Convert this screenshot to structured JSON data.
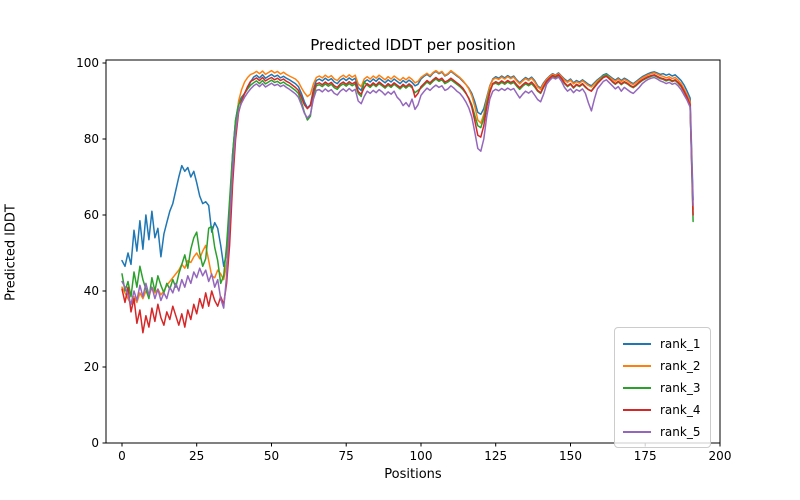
{
  "chart_data": {
    "type": "line",
    "title": "Predicted lDDT per position",
    "xlabel": "Positions",
    "ylabel": "Predicted lDDT",
    "xlim": [
      -5.35,
      200
    ],
    "ylim": [
      0,
      100.8
    ],
    "xticks": [
      0,
      25,
      50,
      75,
      100,
      125,
      150,
      175,
      200
    ],
    "yticks": [
      0,
      20,
      40,
      60,
      80,
      100
    ],
    "grid": false,
    "legend_position": "lower right",
    "x_start": 0,
    "x_step": 1,
    "series": [
      {
        "name": "rank_1",
        "color": "#1f77b4",
        "values": [
          48,
          46.5,
          50,
          47,
          56,
          50.5,
          58.5,
          51,
          60,
          53.5,
          61,
          54,
          56.5,
          49,
          55,
          58,
          61,
          63,
          66.5,
          70,
          73,
          71.5,
          72.5,
          70,
          71.5,
          68.5,
          65,
          63,
          63.5,
          62.5,
          55.5,
          58,
          56.5,
          52,
          46.5,
          50,
          62,
          76,
          85,
          89.5,
          91,
          92,
          93.5,
          95,
          96.3,
          96.8,
          96.1,
          96.9,
          96,
          96.5,
          97,
          96.4,
          96.8,
          96.1,
          96.5,
          96,
          95.6,
          95.1,
          94.6,
          93.8,
          92,
          89.8,
          88.2,
          89,
          93,
          95.4,
          95.8,
          95.3,
          96,
          95.4,
          95.9,
          95,
          94.6,
          95.5,
          96,
          95.4,
          96.1,
          95.5,
          96,
          93.5,
          92.8,
          95,
          95.6,
          95,
          95.8,
          95.2,
          96,
          95.4,
          94.8,
          95.6,
          95,
          95.8,
          95.2,
          94.6,
          95.4,
          94.8,
          95.5,
          94.9,
          94,
          94.4,
          95.8,
          96.5,
          97,
          96.4,
          97.3,
          97.8,
          97.2,
          97.6,
          96.6,
          97,
          97.8,
          97.2,
          96.6,
          96,
          95.2,
          94.4,
          93.4,
          92,
          89.8,
          87,
          86.5,
          88,
          91,
          94,
          95.8,
          96.4,
          96,
          96.6,
          96.1,
          96.7,
          96.2,
          96.6,
          95.6,
          94.8,
          95.6,
          96.2,
          95.7,
          96.3,
          95.4,
          94,
          93.4,
          94.8,
          95.8,
          96.6,
          97.2,
          96.8,
          97.4,
          96.6,
          95.8,
          95.2,
          95.8,
          94.8,
          95.4,
          95,
          95.6,
          95,
          94.4,
          94,
          94.8,
          95.6,
          96.2,
          96.9,
          97.2,
          96.6,
          96,
          95.5,
          96.1,
          95.4,
          96,
          95.6,
          95,
          94.6,
          95.2,
          95.8,
          96.4,
          96.8,
          97.2,
          97.5,
          97.7,
          97.4,
          97,
          97.2,
          96.8,
          97.1,
          96.6,
          96.9,
          96.2,
          95.4,
          94.2,
          92.6,
          90.8,
          64
        ]
      },
      {
        "name": "rank_2",
        "color": "#ff7f0e",
        "values": [
          41,
          39.5,
          38,
          36.5,
          38.5,
          37,
          39.5,
          38,
          40,
          38.5,
          41,
          39.5,
          40.5,
          39,
          40,
          41.5,
          42.5,
          43.5,
          44.5,
          45.5,
          47,
          46,
          48,
          47.5,
          49,
          50,
          48.5,
          50.5,
          52,
          48,
          44,
          43.5,
          45.5,
          44.5,
          43,
          47,
          56,
          70,
          82,
          90,
          93,
          95,
          96.2,
          97,
          97.3,
          97.8,
          97.2,
          97.9,
          97,
          97.5,
          98,
          97.4,
          97.8,
          97.1,
          97.6,
          97,
          96.6,
          96.2,
          95.8,
          95,
          93.5,
          92.2,
          91.2,
          91.8,
          94.5,
          96.2,
          96.6,
          96.1,
          96.8,
          96.2,
          96.7,
          95.8,
          95.4,
          96.3,
          96.8,
          96.2,
          96.9,
          96.3,
          96.8,
          94.5,
          93.8,
          95.8,
          96.4,
          95.8,
          96.6,
          96,
          96.8,
          96.2,
          95.6,
          96.4,
          95.8,
          96.6,
          96,
          95.4,
          96.2,
          95.6,
          96.3,
          95.7,
          94.8,
          95.2,
          96.2,
          96.8,
          97.3,
          96.7,
          97.5,
          98,
          97.4,
          97.8,
          96.8,
          97.2,
          98,
          97.4,
          96.8,
          96.2,
          95.4,
          94.4,
          93.2,
          91.4,
          88.6,
          85,
          84.2,
          86.5,
          90.5,
          93.8,
          95.6,
          96.1,
          95.7,
          96.3,
          95.8,
          96.4,
          95.9,
          96.3,
          95.3,
          94.5,
          95.3,
          95.9,
          95.4,
          96,
          95.1,
          93.7,
          93.1,
          94.5,
          95.6,
          96.4,
          97,
          96.7,
          97.2,
          96.4,
          95.5,
          94.9,
          95.5,
          94.5,
          95.1,
          94.7,
          95.3,
          94.7,
          94.1,
          93.7,
          94.5,
          95.3,
          95.9,
          96.6,
          96.9,
          96.3,
          95.7,
          95.2,
          95.8,
          95.1,
          95.7,
          95.3,
          94.7,
          94.3,
          94.9,
          95.5,
          96.1,
          96.5,
          96.9,
          97.2,
          97.4,
          97.1,
          96.7,
          96.5,
          96.1,
          96.4,
          95.9,
          96.2,
          95.5,
          94.6,
          93.2,
          91.6,
          89.8,
          61.5
        ]
      },
      {
        "name": "rank_3",
        "color": "#2ca02c",
        "values": [
          44.5,
          40,
          42.5,
          38.5,
          45,
          41,
          46.5,
          43,
          40.5,
          38,
          43.5,
          40,
          44,
          41.5,
          39.5,
          42,
          40.5,
          43,
          41,
          44.5,
          47,
          49.5,
          46,
          51,
          54,
          55.5,
          50,
          46.5,
          48.5,
          56.5,
          57,
          51.5,
          48,
          42,
          44,
          52,
          64,
          76,
          85,
          89,
          90.5,
          92,
          93.2,
          94.2,
          94.8,
          95.3,
          94.6,
          95.4,
          94.5,
          95,
          95.5,
          94.9,
          95.2,
          94.6,
          95,
          94.4,
          94,
          93.4,
          92.8,
          92,
          89.8,
          87,
          85,
          86,
          91.5,
          94,
          94.3,
          93.8,
          94.5,
          93.9,
          94.4,
          93.5,
          93.1,
          94,
          94.5,
          93.9,
          94.6,
          94,
          94.5,
          92,
          91.2,
          95,
          94.2,
          93.6,
          94.4,
          93.8,
          94.6,
          94,
          93.4,
          94.2,
          93.6,
          94.4,
          93.8,
          93.2,
          94,
          93.4,
          94.1,
          93.5,
          92.2,
          92.8,
          93.4,
          94.2,
          95,
          94.4,
          95.2,
          95.8,
          95.2,
          95.6,
          94.6,
          95,
          95.6,
          95,
          94.4,
          93.8,
          93,
          92,
          90.8,
          89,
          86.2,
          83.5,
          83,
          85.5,
          89.5,
          92.8,
          94.4,
          94.7,
          94.3,
          94.9,
          94.4,
          95,
          94.5,
          94.9,
          93.9,
          93.1,
          93.9,
          94.5,
          94,
          94.6,
          93.7,
          92.6,
          92,
          93.6,
          95,
          95.8,
          96.5,
          96.2,
          96.7,
          95.8,
          94.6,
          93.8,
          94.4,
          93.4,
          94.2,
          93.8,
          94.4,
          93.6,
          93,
          92.7,
          93.8,
          94.8,
          95.6,
          96.5,
          96.8,
          96,
          95,
          94.4,
          95,
          94.3,
          94.9,
          94.5,
          93.9,
          93.5,
          94.1,
          94.8,
          95.4,
          95.8,
          96.2,
          96.5,
          96.7,
          96.3,
          95.9,
          95.7,
          95.3,
          95.6,
          95.1,
          95.4,
          94.7,
          93.8,
          92.4,
          90.8,
          88.8,
          58.3
        ]
      },
      {
        "name": "rank_4",
        "color": "#d62728",
        "values": [
          40.5,
          37,
          41,
          34.5,
          38,
          31.5,
          35,
          29,
          33.5,
          30.5,
          35.5,
          32,
          36.5,
          33,
          31,
          34.5,
          32.5,
          36,
          33.5,
          31,
          34,
          30.5,
          35,
          32.5,
          36.5,
          34,
          38,
          35.5,
          39.5,
          36,
          40,
          37.5,
          36,
          38.5,
          36.5,
          42,
          52,
          68,
          80,
          87,
          90,
          92,
          93.8,
          95.2,
          95.6,
          96.1,
          95.4,
          96.2,
          95.3,
          95.8,
          96.2,
          95.6,
          96,
          95.4,
          95.8,
          95.2,
          94.8,
          94.2,
          93.6,
          92.8,
          91,
          89,
          88,
          88.8,
          92.5,
          94.5,
          94.8,
          94.3,
          95,
          94.4,
          94.9,
          94,
          93.6,
          94.5,
          95,
          94.4,
          95.1,
          94.5,
          95,
          92.5,
          91.8,
          93.5,
          94.6,
          94,
          94.8,
          94.2,
          95,
          94.4,
          93.8,
          94.6,
          94,
          94.8,
          94.2,
          93.6,
          94.4,
          93.8,
          94.5,
          93.9,
          91,
          92,
          93.8,
          94.6,
          95.4,
          94.8,
          95.6,
          96.2,
          95.6,
          96,
          95,
          95.4,
          96,
          95.4,
          94.8,
          94.2,
          93.4,
          92.2,
          90.6,
          88.4,
          84.8,
          81,
          80.5,
          83.5,
          88.5,
          92.2,
          94.6,
          95.1,
          94.7,
          95.3,
          94.8,
          95.4,
          94.9,
          95.3,
          94.3,
          93.5,
          94.3,
          94.9,
          94.4,
          95,
          94.1,
          92.8,
          92.2,
          93.8,
          95.2,
          96,
          96.7,
          96.4,
          96.9,
          96,
          94.8,
          94,
          94.6,
          93.6,
          94.4,
          94,
          94.6,
          93.8,
          93,
          92.6,
          93.6,
          94.6,
          95.4,
          96.2,
          96.5,
          95.8,
          95.2,
          94.6,
          95.2,
          94.5,
          95.1,
          94.7,
          94.1,
          93.7,
          94.3,
          95,
          95.6,
          96,
          96.4,
          96.7,
          96.9,
          96.5,
          96.1,
          95.9,
          95.5,
          95.8,
          95.3,
          95.6,
          94.9,
          94,
          92.6,
          91,
          89,
          60
        ]
      },
      {
        "name": "rank_5",
        "color": "#9467bd",
        "values": [
          42.5,
          41,
          39,
          36.5,
          40,
          37.5,
          41.5,
          38.5,
          42,
          39,
          41,
          38,
          40.5,
          37.5,
          39.5,
          38,
          41,
          39.5,
          42,
          40,
          43,
          41,
          44,
          42,
          45,
          43.5,
          46,
          44,
          45.5,
          42.5,
          44.5,
          41,
          43,
          38,
          35.5,
          44,
          58,
          72,
          82,
          87.5,
          89.5,
          91,
          92.2,
          93.2,
          94,
          94.5,
          93.8,
          94.6,
          93.7,
          94.2,
          94.7,
          94.1,
          94.4,
          93.8,
          94.2,
          93.6,
          93.1,
          92.5,
          91.9,
          91,
          89,
          86.8,
          85.5,
          86.5,
          90.5,
          92.8,
          93,
          92.4,
          93.2,
          92.5,
          93,
          92,
          91.6,
          92.6,
          93.2,
          92.5,
          93.3,
          92.6,
          93.1,
          90,
          89.3,
          91.2,
          92.6,
          92,
          92.8,
          92.2,
          93,
          92.4,
          91.6,
          92.4,
          91.8,
          92.6,
          91,
          90.2,
          88.8,
          89.6,
          88.5,
          90.5,
          87.8,
          89,
          91.5,
          92.5,
          93.4,
          92.8,
          93.6,
          94.2,
          93.6,
          94,
          92.8,
          93.2,
          94,
          93.4,
          92.6,
          92,
          91,
          89.8,
          88.2,
          85.8,
          81.8,
          77.5,
          76.8,
          80,
          86,
          90.5,
          92.6,
          93.1,
          92.7,
          93.3,
          92.8,
          93.4,
          92.9,
          93.3,
          92,
          90.8,
          91.8,
          92.6,
          92.1,
          92.7,
          91.6,
          90.4,
          89.8,
          91.8,
          94.4,
          95.4,
          96.2,
          95.8,
          96.3,
          95.2,
          93.6,
          92.6,
          93.2,
          92.2,
          93,
          92.6,
          93.2,
          92,
          89.5,
          87.4,
          90.5,
          93.2,
          94.2,
          95.2,
          95.6,
          94.8,
          94,
          93.2,
          93.8,
          92.6,
          93.6,
          93,
          92.4,
          92,
          92.8,
          93.6,
          94.6,
          95.2,
          95.7,
          96,
          96.2,
          95.8,
          95.3,
          95,
          94.6,
          94.9,
          94.4,
          94.7,
          94,
          93,
          91.6,
          90.2,
          88.4,
          62.5
        ]
      }
    ]
  }
}
